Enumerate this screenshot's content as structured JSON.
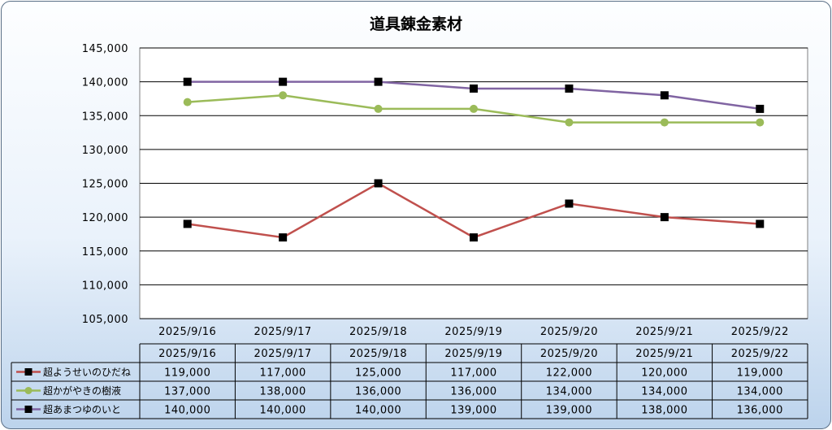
{
  "chart_data": {
    "type": "line",
    "title": "道具錬金素材",
    "categories": [
      "2025/9/16",
      "2025/9/17",
      "2025/9/18",
      "2025/9/19",
      "2025/9/20",
      "2025/9/21",
      "2025/9/22"
    ],
    "y_ticks": [
      "145,000",
      "140,000",
      "135,000",
      "130,000",
      "125,000",
      "120,000",
      "115,000",
      "110,000",
      "105,000"
    ],
    "ylim": [
      105000,
      145000
    ],
    "y_step": 5000,
    "grid": true,
    "legend_placement": "data-table",
    "series": [
      {
        "name": "超ようせいのひだね",
        "color": "#c0504d",
        "marker": "square",
        "marker_color": "#000000",
        "values": [
          119000,
          117000,
          125000,
          117000,
          122000,
          120000,
          119000
        ],
        "labels": [
          "119,000",
          "117,000",
          "125,000",
          "117,000",
          "122,000",
          "120,000",
          "119,000"
        ]
      },
      {
        "name": "超かがやきの樹液",
        "color": "#9bbb59",
        "marker": "circle",
        "marker_color": "#9bbb59",
        "values": [
          137000,
          138000,
          136000,
          136000,
          134000,
          134000,
          134000
        ],
        "labels": [
          "137,000",
          "138,000",
          "136,000",
          "136,000",
          "134,000",
          "134,000",
          "134,000"
        ]
      },
      {
        "name": "超あまつゆのいと",
        "color": "#8064a2",
        "marker": "square",
        "marker_color": "#000000",
        "values": [
          140000,
          140000,
          140000,
          139000,
          139000,
          138000,
          136000
        ],
        "labels": [
          "140,000",
          "140,000",
          "140,000",
          "139,000",
          "139,000",
          "138,000",
          "136,000"
        ]
      }
    ]
  }
}
